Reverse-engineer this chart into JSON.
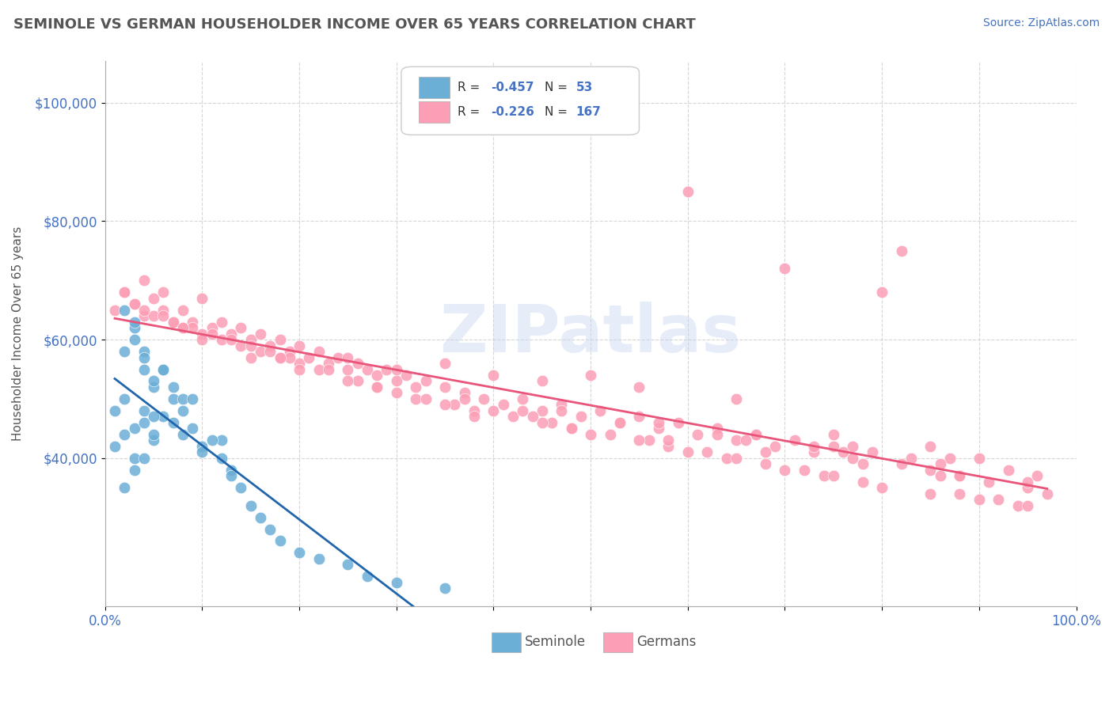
{
  "title": "SEMINOLE VS GERMAN HOUSEHOLDER INCOME OVER 65 YEARS CORRELATION CHART",
  "source": "Source: ZipAtlas.com",
  "ylabel": "Householder Income Over 65 years",
  "xlim": [
    0.0,
    1.0
  ],
  "ylim": [
    15000,
    107000
  ],
  "yticks": [
    40000,
    60000,
    80000,
    100000
  ],
  "ytick_labels": [
    "$40,000",
    "$60,000",
    "$80,000",
    "$100,000"
  ],
  "watermark": "ZIPatlas",
  "seminole_color": "#6baed6",
  "german_color": "#fc9eb5",
  "seminole_line_color": "#2166ac",
  "german_line_color": "#e8547a",
  "background_color": "#ffffff",
  "grid_color": "#cccccc",
  "title_color": "#555555",
  "axis_label_color": "#4472c4",
  "seminole_x": [
    0.02,
    0.03,
    0.04,
    0.02,
    0.01,
    0.03,
    0.05,
    0.02,
    0.01,
    0.04,
    0.03,
    0.06,
    0.04,
    0.05,
    0.07,
    0.06,
    0.05,
    0.04,
    0.03,
    0.02,
    0.08,
    0.09,
    0.1,
    0.08,
    0.12,
    0.13,
    0.14,
    0.15,
    0.16,
    0.17,
    0.18,
    0.2,
    0.22,
    0.25,
    0.27,
    0.3,
    0.12,
    0.09,
    0.07,
    0.06,
    0.03,
    0.04,
    0.05,
    0.02,
    0.03,
    0.04,
    0.07,
    0.08,
    0.1,
    0.05,
    0.11,
    0.13,
    0.35
  ],
  "seminole_y": [
    58000,
    62000,
    55000,
    50000,
    48000,
    45000,
    52000,
    44000,
    42000,
    48000,
    40000,
    55000,
    46000,
    43000,
    50000,
    47000,
    44000,
    40000,
    38000,
    35000,
    50000,
    45000,
    42000,
    48000,
    40000,
    38000,
    35000,
    32000,
    30000,
    28000,
    26000,
    24000,
    23000,
    22000,
    20000,
    19000,
    43000,
    50000,
    52000,
    55000,
    60000,
    58000,
    53000,
    65000,
    63000,
    57000,
    46000,
    44000,
    41000,
    47000,
    43000,
    37000,
    18000
  ],
  "german_x": [
    0.01,
    0.02,
    0.03,
    0.04,
    0.05,
    0.06,
    0.07,
    0.08,
    0.09,
    0.1,
    0.11,
    0.12,
    0.13,
    0.14,
    0.15,
    0.16,
    0.17,
    0.18,
    0.19,
    0.2,
    0.21,
    0.22,
    0.23,
    0.24,
    0.25,
    0.26,
    0.27,
    0.28,
    0.29,
    0.3,
    0.31,
    0.32,
    0.33,
    0.35,
    0.37,
    0.39,
    0.41,
    0.43,
    0.45,
    0.47,
    0.49,
    0.51,
    0.53,
    0.55,
    0.57,
    0.59,
    0.61,
    0.63,
    0.65,
    0.67,
    0.69,
    0.71,
    0.73,
    0.75,
    0.77,
    0.79,
    0.82,
    0.85,
    0.88,
    0.91,
    0.95,
    0.04,
    0.06,
    0.08,
    0.1,
    0.12,
    0.14,
    0.16,
    0.18,
    0.2,
    0.25,
    0.3,
    0.35,
    0.4,
    0.45,
    0.5,
    0.55,
    0.6,
    0.65,
    0.7,
    0.75,
    0.8,
    0.85,
    0.9,
    0.95,
    0.03,
    0.05,
    0.07,
    0.09,
    0.11,
    0.13,
    0.15,
    0.17,
    0.19,
    0.22,
    0.26,
    0.28,
    0.32,
    0.36,
    0.38,
    0.42,
    0.46,
    0.48,
    0.52,
    0.56,
    0.58,
    0.62,
    0.64,
    0.68,
    0.72,
    0.74,
    0.78,
    0.82,
    0.86,
    0.88,
    0.92,
    0.94,
    0.02,
    0.04,
    0.06,
    0.08,
    0.1,
    0.15,
    0.2,
    0.25,
    0.3,
    0.35,
    0.4,
    0.45,
    0.5,
    0.55,
    0.6,
    0.65,
    0.7,
    0.75,
    0.8,
    0.85,
    0.9,
    0.95,
    0.33,
    0.43,
    0.53,
    0.63,
    0.73,
    0.83,
    0.93,
    0.38,
    0.48,
    0.58,
    0.68,
    0.78,
    0.88,
    0.28,
    0.37,
    0.47,
    0.57,
    0.67,
    0.77,
    0.87,
    0.97,
    0.18,
    0.23,
    0.44,
    0.66,
    0.76,
    0.86,
    0.96
  ],
  "german_y": [
    65000,
    68000,
    66000,
    64000,
    67000,
    65000,
    63000,
    62000,
    63000,
    61000,
    62000,
    60000,
    61000,
    59000,
    60000,
    58000,
    59000,
    57000,
    58000,
    56000,
    57000,
    58000,
    56000,
    57000,
    55000,
    56000,
    55000,
    54000,
    55000,
    53000,
    54000,
    52000,
    53000,
    52000,
    51000,
    50000,
    49000,
    50000,
    48000,
    49000,
    47000,
    48000,
    46000,
    47000,
    45000,
    46000,
    44000,
    45000,
    43000,
    44000,
    42000,
    43000,
    41000,
    42000,
    40000,
    41000,
    39000,
    38000,
    37000,
    36000,
    35000,
    70000,
    68000,
    65000,
    67000,
    63000,
    62000,
    61000,
    60000,
    59000,
    57000,
    55000,
    56000,
    54000,
    53000,
    54000,
    52000,
    85000,
    50000,
    72000,
    44000,
    68000,
    42000,
    40000,
    36000,
    66000,
    64000,
    63000,
    62000,
    61000,
    60000,
    59000,
    58000,
    57000,
    55000,
    53000,
    52000,
    50000,
    49000,
    48000,
    47000,
    46000,
    45000,
    44000,
    43000,
    42000,
    41000,
    40000,
    39000,
    38000,
    37000,
    36000,
    75000,
    37000,
    34000,
    33000,
    32000,
    68000,
    65000,
    64000,
    62000,
    60000,
    57000,
    55000,
    53000,
    51000,
    49000,
    48000,
    46000,
    44000,
    43000,
    41000,
    40000,
    38000,
    37000,
    35000,
    34000,
    33000,
    32000,
    50000,
    48000,
    46000,
    44000,
    42000,
    40000,
    38000,
    47000,
    45000,
    43000,
    41000,
    39000,
    37000,
    52000,
    50000,
    48000,
    46000,
    44000,
    42000,
    40000,
    34000,
    57000,
    55000,
    47000,
    43000,
    41000,
    39000,
    37000
  ]
}
